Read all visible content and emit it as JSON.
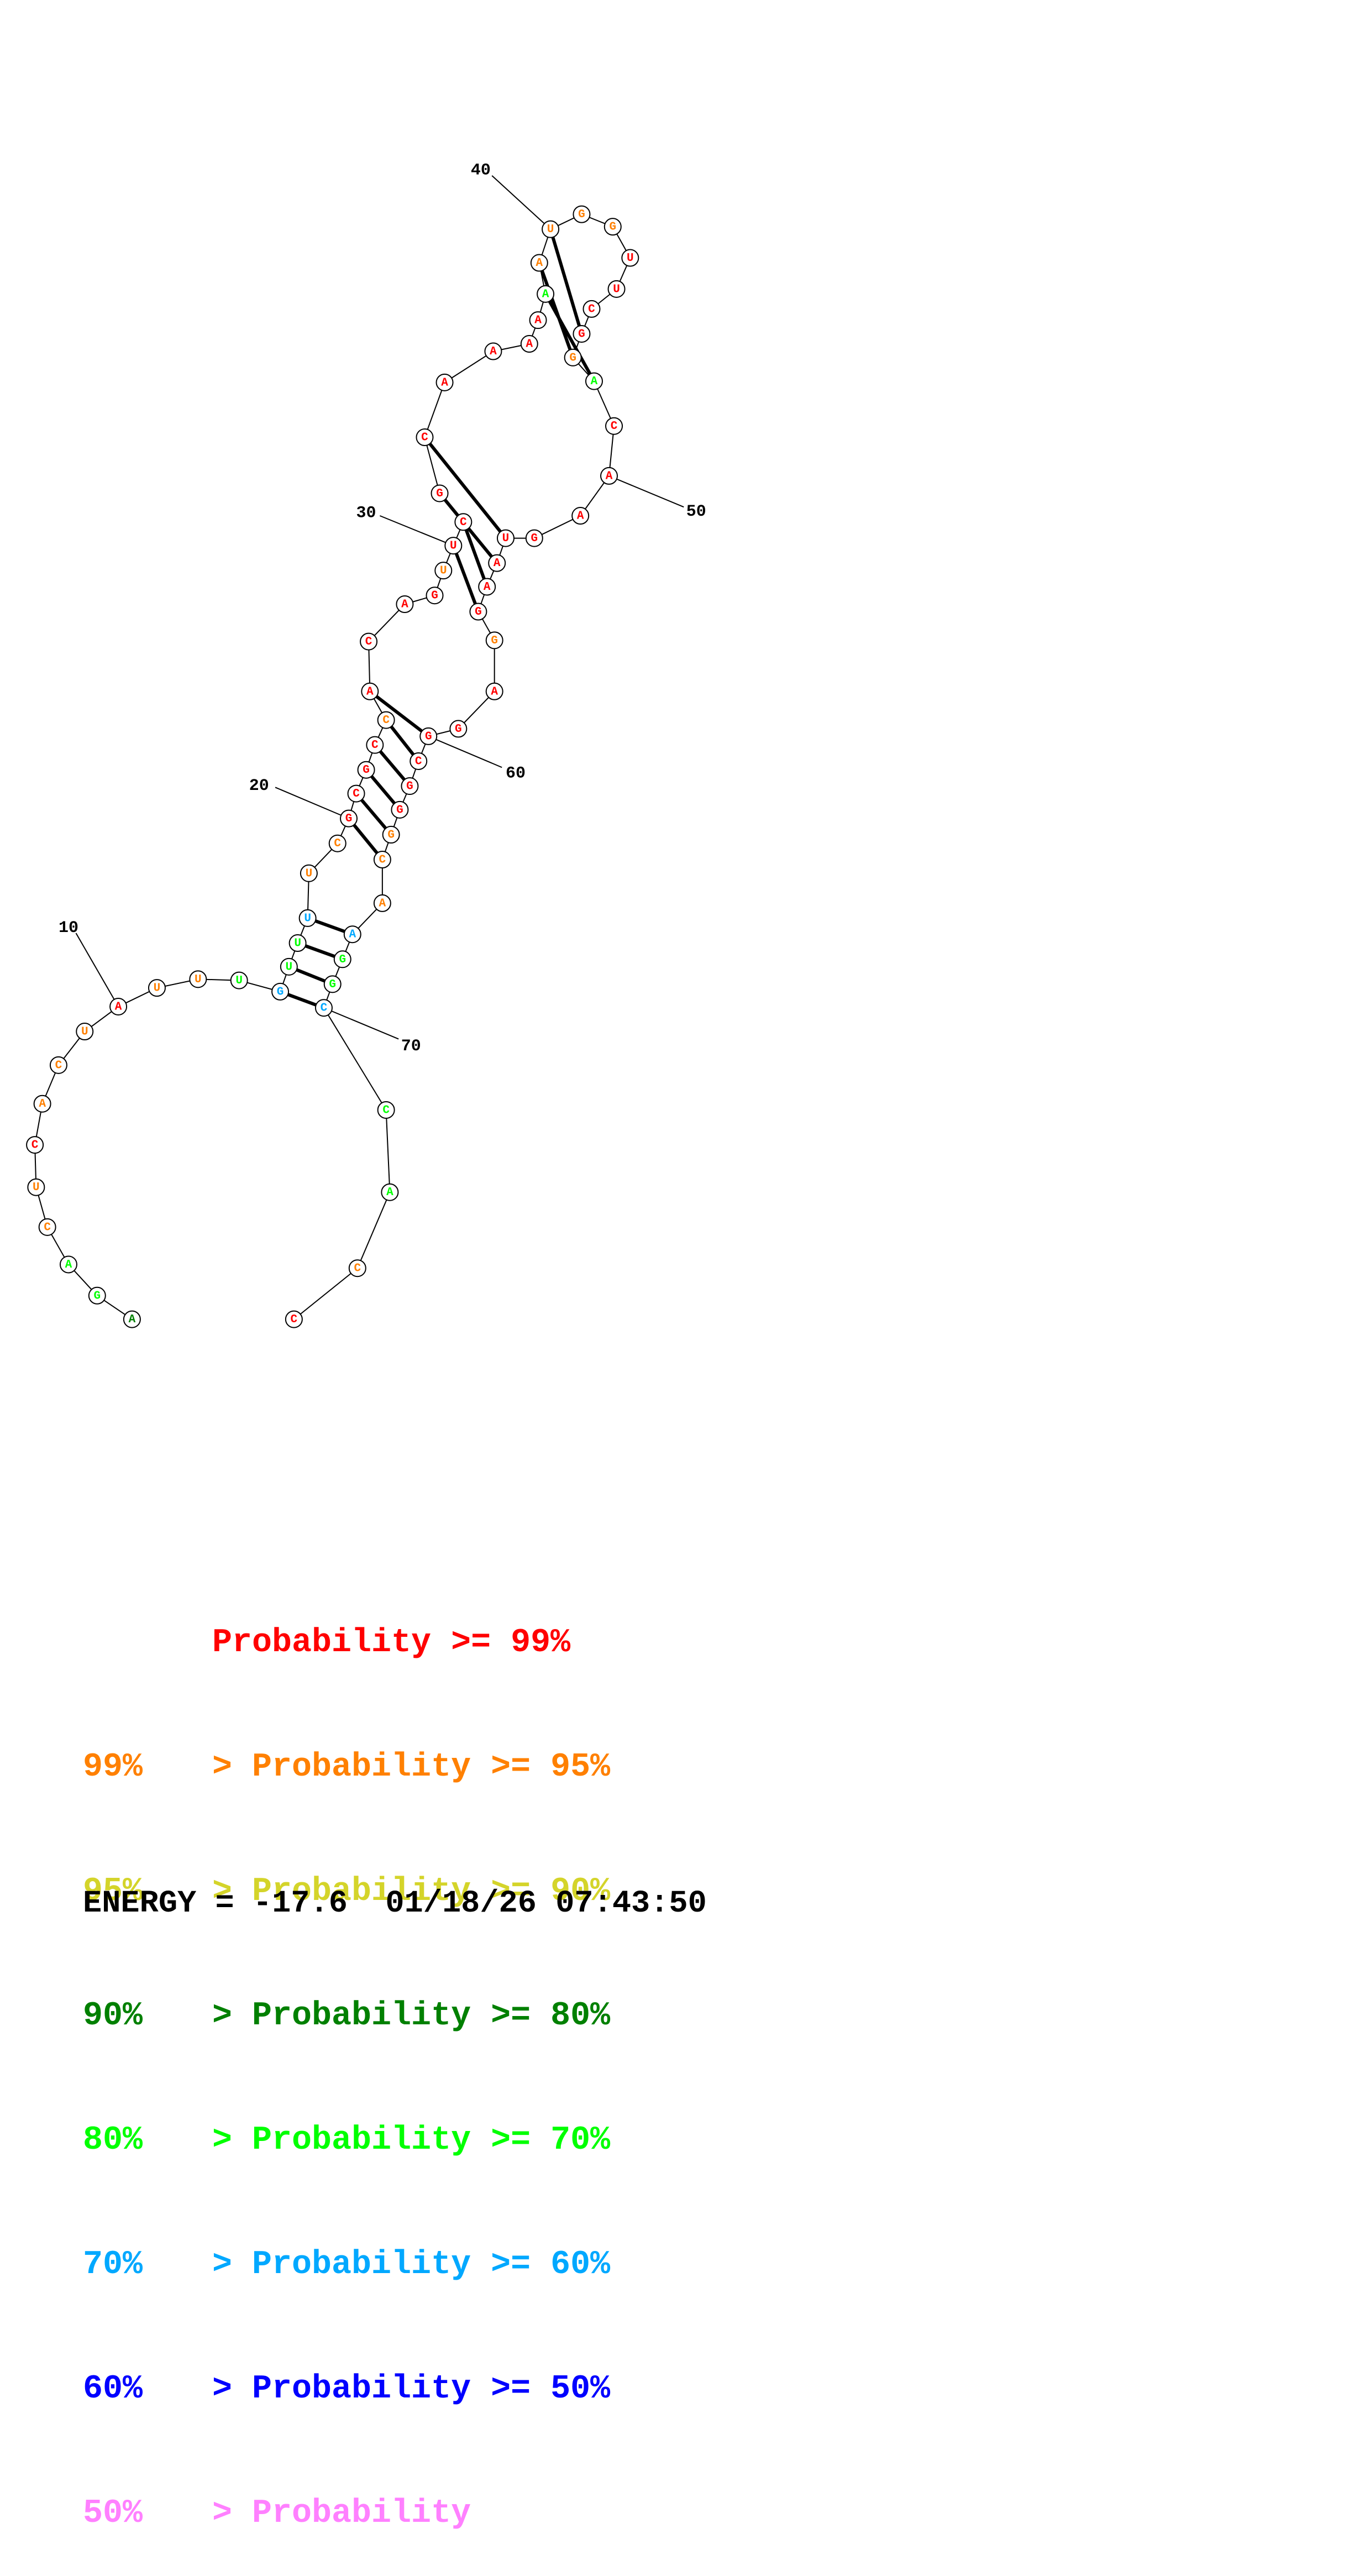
{
  "sequence": "AGACUCACUAUUUGUUUUCGCGCCACAGUUCGCAAAAAAUGGUUCGGACAAGUAAGGAGGCGGGCAAGGCCACC",
  "probability_class": [
    3,
    4,
    4,
    1,
    1,
    0,
    1,
    1,
    1,
    0,
    1,
    1,
    4,
    5,
    4,
    4,
    5,
    1,
    1,
    0,
    0,
    0,
    0,
    1,
    0,
    0,
    0,
    0,
    1,
    0,
    0,
    0,
    0,
    0,
    0,
    0,
    0,
    4,
    1,
    1,
    1,
    1,
    0,
    0,
    0,
    0,
    1,
    4,
    0,
    0,
    0,
    0,
    0,
    0,
    0,
    0,
    1,
    0,
    0,
    0,
    0,
    0,
    0,
    1,
    1,
    1,
    5,
    4,
    4,
    5,
    4,
    4,
    1,
    0
  ],
  "pairs": [
    [
      14,
      70
    ],
    [
      15,
      69
    ],
    [
      16,
      68
    ],
    [
      17,
      67
    ],
    [
      20,
      65
    ],
    [
      21,
      64
    ],
    [
      22,
      63
    ],
    [
      23,
      62
    ],
    [
      24,
      61
    ],
    [
      25,
      60
    ],
    [
      30,
      56
    ],
    [
      31,
      55
    ],
    [
      32,
      54
    ],
    [
      33,
      53
    ],
    [
      38,
      48
    ],
    [
      39,
      47
    ],
    [
      40,
      46
    ]
  ],
  "position_labels": [
    {
      "index": 10,
      "text": "10"
    },
    {
      "index": 20,
      "text": "20"
    },
    {
      "index": 30,
      "text": "30"
    },
    {
      "index": 40,
      "text": "40"
    },
    {
      "index": 50,
      "text": "50"
    },
    {
      "index": 60,
      "text": "60"
    },
    {
      "index": 70,
      "text": "70"
    }
  ],
  "class_colors": [
    "#ff0000",
    "#ff8000",
    "#d4d42a",
    "#008000",
    "#00ff00",
    "#00a8ff",
    "#0000ff",
    "#ff80ff"
  ],
  "legend": {
    "rows": [
      {
        "lower": "",
        "text": "Probability >= 99%",
        "color": "#ff0000"
      },
      {
        "lower": "99%",
        "text": "> Probability >= 95%",
        "color": "#ff8000"
      },
      {
        "lower": "95%",
        "text": "> Probability >= 90%",
        "color": "#d4d42a"
      },
      {
        "lower": "90%",
        "text": "> Probability >= 80%",
        "color": "#008000"
      },
      {
        "lower": "80%",
        "text": "> Probability >= 70%",
        "color": "#00ff00"
      },
      {
        "lower": "70%",
        "text": "> Probability >= 60%",
        "color": "#00a8ff"
      },
      {
        "lower": "60%",
        "text": "> Probability >= 50%",
        "color": "#0000ff"
      },
      {
        "lower": "50%",
        "text": "> Probability",
        "color": "#ff80ff"
      }
    ]
  },
  "energy": {
    "label": "ENERGY =",
    "value": "-17.6",
    "date": "01/18/26",
    "time": "07:43:50"
  }
}
